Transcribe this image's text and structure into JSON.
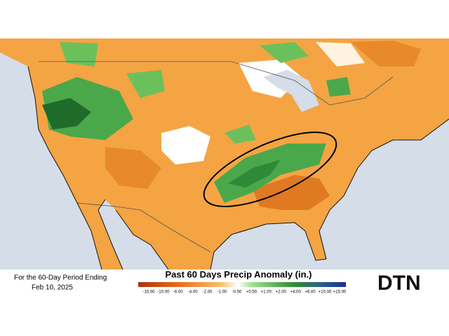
{
  "caption": {
    "line1": "For the 60-Day Period Ending",
    "line2": "Feb 10, 2025"
  },
  "legend": {
    "title": "Past 60 Days Precip Anomaly (in.)",
    "labels": [
      "-15.00",
      "-10.00",
      "-6.00",
      "-4.00",
      "-2.00",
      "-1.00",
      "-0.50",
      "+0.50",
      "+1.00",
      "+2.00",
      "+4.00",
      "+6.00",
      "+10.00",
      "+15.00"
    ]
  },
  "logo": "DTN"
}
